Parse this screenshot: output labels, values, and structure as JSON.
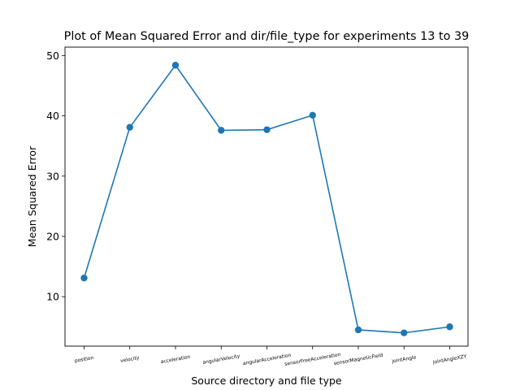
{
  "chart_data": {
    "type": "line",
    "title": "Plot of Mean Squared Error and dir/file_type for experiments 13 to 39",
    "xlabel": "Source directory and file type",
    "ylabel": "Mean Squared Error",
    "categories": [
      "position",
      "velocity",
      "acceleration",
      "angularVelocity",
      "angularAcceleration",
      "sensorFreeAcceleration",
      "sensorMagneticField",
      "jointAngle",
      "jointAngleXZY"
    ],
    "values": [
      13.1,
      38.1,
      48.4,
      37.6,
      37.7,
      40.1,
      4.5,
      4.0,
      5.0
    ],
    "yticks": [
      10,
      20,
      30,
      40,
      50
    ],
    "ylim": [
      1.8,
      51.4
    ],
    "grid": false,
    "color": "#1f77b4"
  }
}
